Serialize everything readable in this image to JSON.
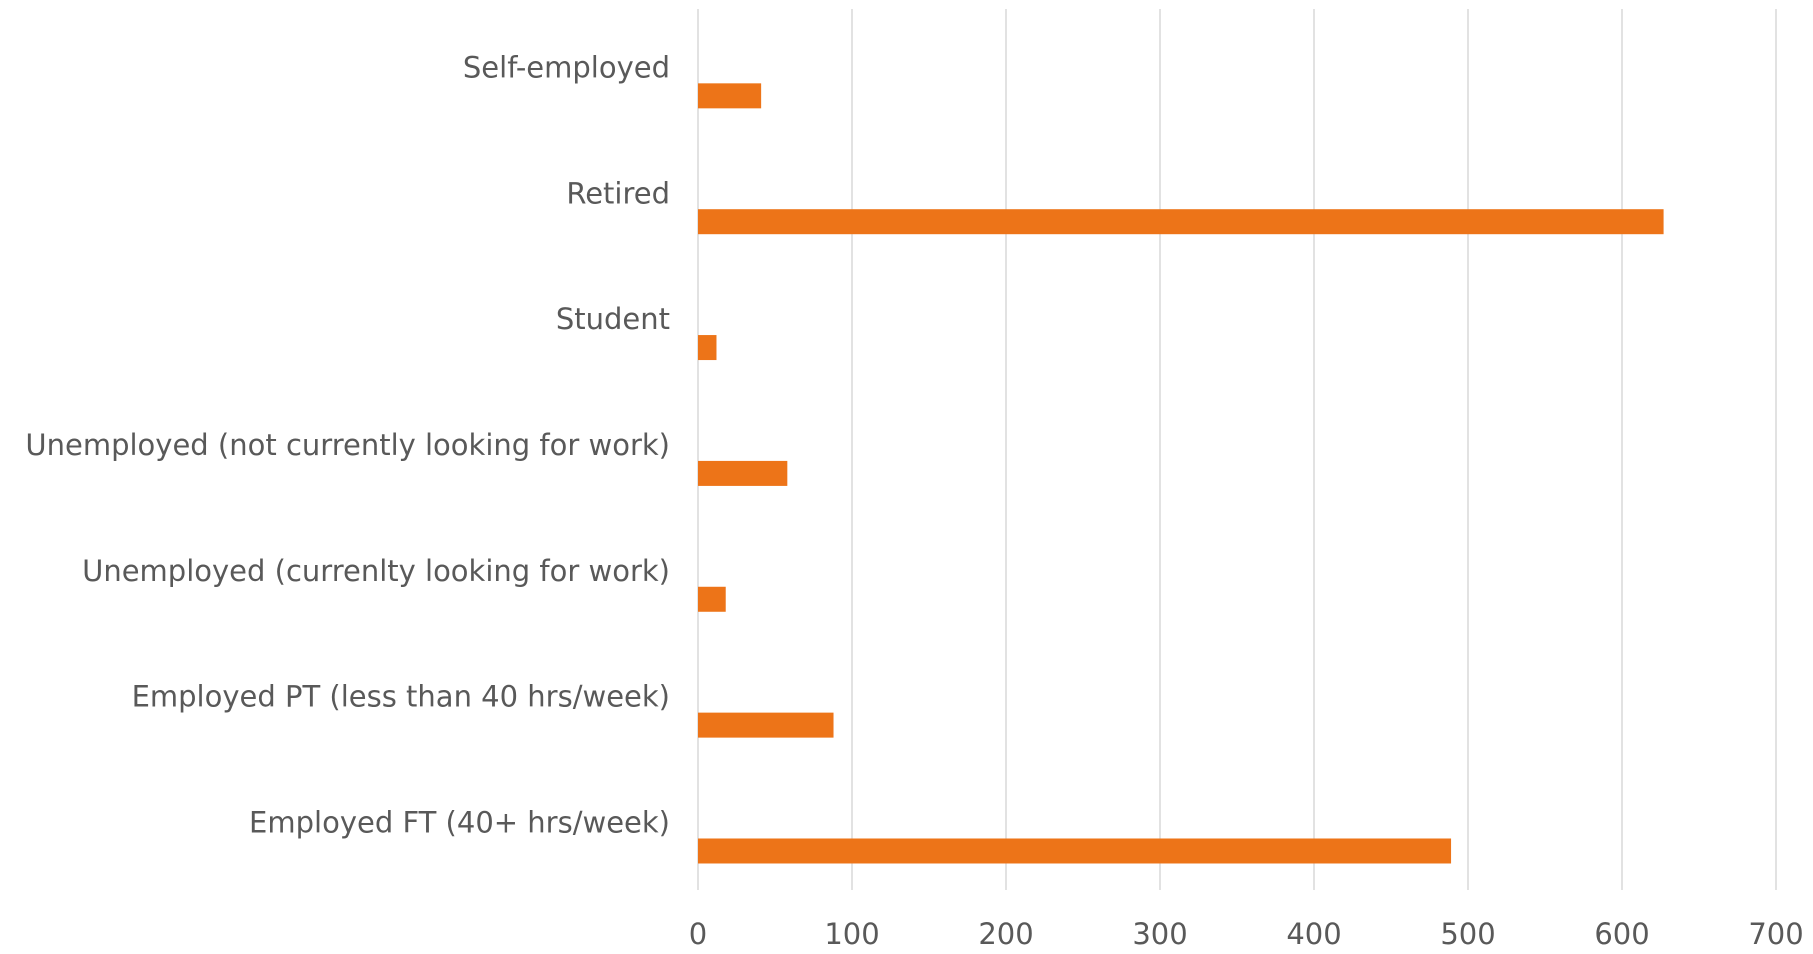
{
  "chart_data": {
    "type": "barh",
    "categories": [
      "Self-employed",
      "Retired",
      "Student",
      "Unemployed (not currently looking for work)",
      "Unemployed (currenlty looking for work)",
      "Employed PT (less than 40 hrs/week)",
      "Employed FT (40+ hrs/week)"
    ],
    "values": [
      41,
      627,
      12,
      58,
      18,
      88,
      489
    ],
    "color": "#ed7418",
    "xlim": [
      0,
      700
    ],
    "xticks": [
      0,
      100,
      200,
      300,
      400,
      500,
      600,
      700
    ],
    "grid": true
  }
}
